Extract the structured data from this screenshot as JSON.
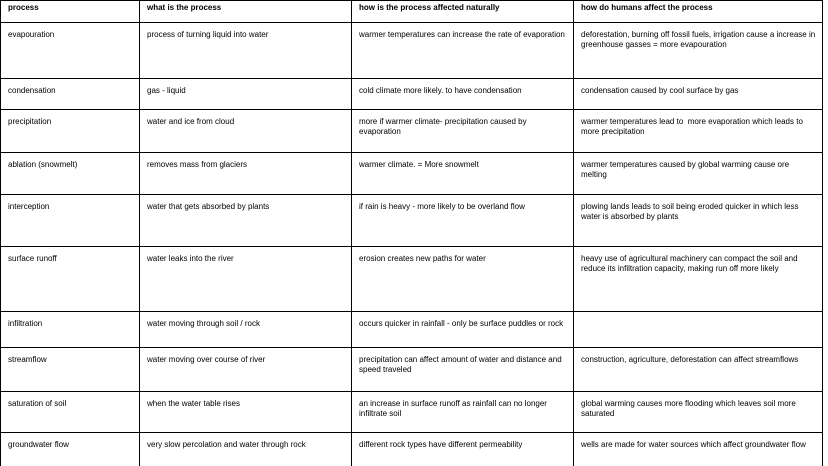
{
  "table": {
    "header": [
      "process",
      "what is the process",
      "how is the process affected naturally",
      "how do humans affect the process"
    ],
    "rows": [
      [
        "evapouration",
        "process of turning liquid into water",
        "warmer temperatures can increase the rate of evaporation",
        "deforestation, burning off fossil fuels, irrigation cause a increase in greenhouse gasses = more evapouration"
      ],
      [
        "condensation",
        "gas - liquid",
        "cold climate more likely. to have condensation",
        "condensation caused by cool surface by gas"
      ],
      [
        "precipitation",
        "water and ice from cloud",
        "more if warmer climate- precipitation caused by evaporation",
        "warmer temperatures lead to  more evaporation which leads to more precipitation"
      ],
      [
        "ablation (snowmelt)",
        "removes mass from glaciers",
        "warmer climate. = More snowmelt",
        "warmer temperatures caused by global warming cause ore melting"
      ],
      [
        "interception",
        "water that gets absorbed by plants",
        "if rain is heavy - more likely to be overland flow",
        "plowing lands leads to soil being eroded quicker in which less water is absorbed by plants"
      ],
      [
        "surface runoff",
        "water leaks into the river",
        "erosion creates new paths for water",
        "heavy use of agricultural machinery can compact the soil and reduce its infiltration capacity, making run off more likely"
      ],
      [
        "infiltration",
        "water moving through soil / rock",
        "occurs quicker in rainfall - only be surface puddles or rock",
        ""
      ],
      [
        "streamflow",
        "water moving over course of river",
        "precipitation can affect amount of water and distance and speed traveled",
        "construction, agriculture, deforestation can affect streamflows"
      ],
      [
        "saturation of soil",
        "when the water table rises",
        "an increase in surface runoff as rainfall can no longer infiltrate soil",
        "global warming causes more flooding which leaves soil more saturated"
      ],
      [
        "groundwater flow",
        "very slow percolation and water through rock",
        "different rock types have different permeability",
        "wells are made for water sources which affect groundwater flow"
      ]
    ]
  }
}
